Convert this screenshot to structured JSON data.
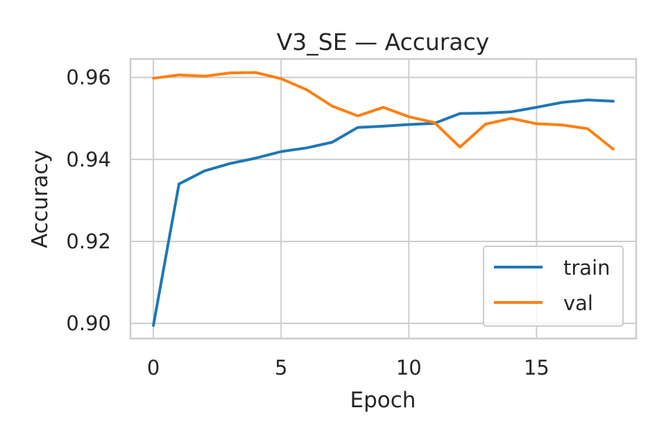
{
  "chart_data": {
    "type": "line",
    "title": "V3_SE — Accuracy",
    "xlabel": "Epoch",
    "ylabel": "Accuracy",
    "x": [
      0,
      1,
      2,
      3,
      4,
      5,
      6,
      7,
      8,
      9,
      10,
      11,
      12,
      13,
      14,
      15,
      16,
      17,
      18
    ],
    "xlim": [
      -0.9,
      18.9
    ],
    "ylim": [
      0.8963,
      0.9645
    ],
    "xticks": [
      0,
      5,
      10,
      15
    ],
    "yticks": [
      0.9,
      0.92,
      0.94,
      0.96
    ],
    "xtick_labels": [
      "0",
      "5",
      "10",
      "15"
    ],
    "ytick_labels": [
      "0.90",
      "0.92",
      "0.94",
      "0.96"
    ],
    "grid": true,
    "legend_position": "lower-right",
    "series": [
      {
        "name": "train",
        "color": "#1f77b4",
        "values": [
          0.8995,
          0.934,
          0.9372,
          0.939,
          0.9403,
          0.9419,
          0.9428,
          0.9442,
          0.9478,
          0.9481,
          0.9485,
          0.9488,
          0.9512,
          0.9513,
          0.9516,
          0.9527,
          0.9539,
          0.9545,
          0.9542
        ]
      },
      {
        "name": "val",
        "color": "#ff7f0e",
        "values": [
          0.9598,
          0.9606,
          0.9603,
          0.9611,
          0.9612,
          0.9597,
          0.957,
          0.953,
          0.9506,
          0.9527,
          0.9504,
          0.949,
          0.943,
          0.9486,
          0.95,
          0.9487,
          0.9484,
          0.9475,
          0.9425
        ]
      }
    ]
  }
}
